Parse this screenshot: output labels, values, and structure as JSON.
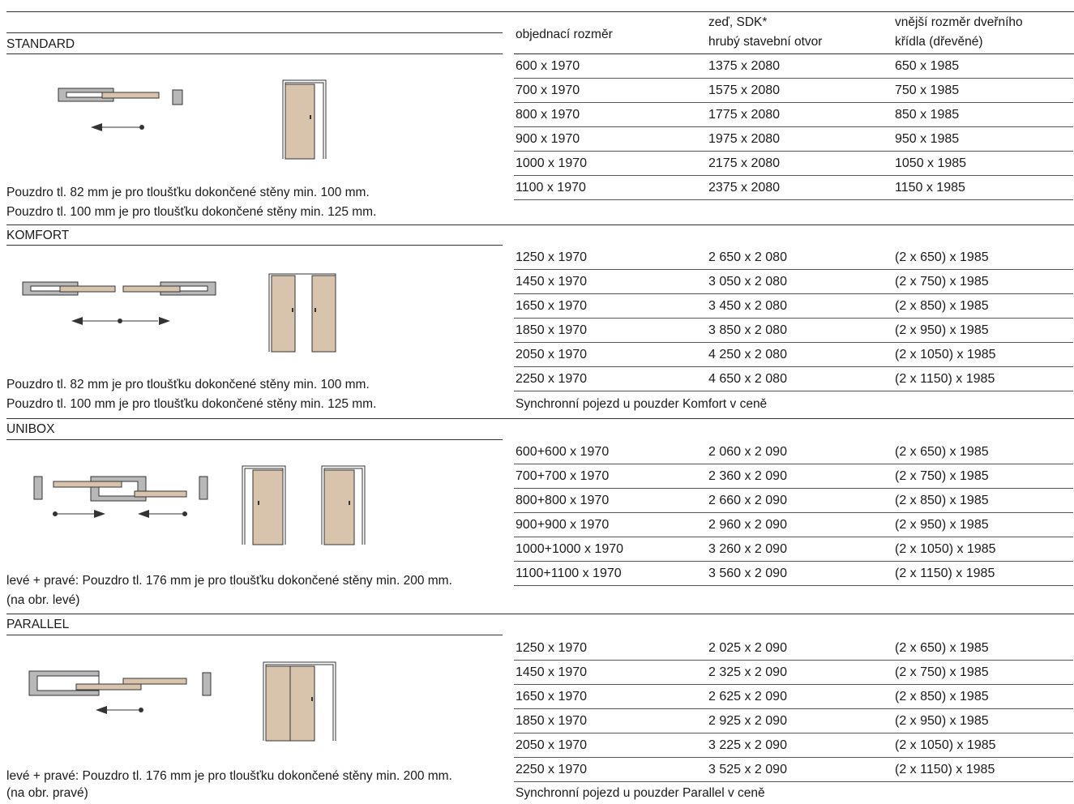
{
  "header": {
    "col1": "objednací rozměr",
    "col2_line1": "zeď, SDK*",
    "col2_line2": "hrubý stavební otvor",
    "col3_line1": "vnější rozměr dveřního",
    "col3_line2": "křídla (dřevěné)"
  },
  "colors": {
    "frame": "#b8b8b8",
    "door": "#d8c4ad",
    "line": "#333333"
  },
  "sections": [
    {
      "title": "STANDARD",
      "notes": [
        "Pouzdro tl. 82 mm je pro tloušťku dokončené stěny min. 100 mm.",
        "Pouzdro tl. 100 mm je pro tloušťku dokončené stěny min. 125 mm."
      ],
      "rows": [
        [
          "600 x 1970",
          "1375 x 2080",
          "650 x 1985"
        ],
        [
          "700 x 1970",
          "1575 x 2080",
          "750 x 1985"
        ],
        [
          "800 x 1970",
          "1775 x 2080",
          "850 x 1985"
        ],
        [
          "900 x 1970",
          "1975 x 2080",
          "950 x 1985"
        ],
        [
          "1000 x 1970",
          "2175 x 2080",
          "1050 x 1985"
        ],
        [
          "1100 x 1970",
          "2375 x 2080",
          "1150 x 1985"
        ]
      ],
      "footnote": ""
    },
    {
      "title": "KOMFORT",
      "notes": [
        "Pouzdro tl. 82 mm je pro tloušťku dokončené stěny min. 100 mm.",
        "Pouzdro tl. 100 mm je pro tloušťku dokončené stěny min. 125 mm."
      ],
      "rows": [
        [
          "1250 x 1970",
          "2 650 x 2 080",
          "(2 x 650) x 1985"
        ],
        [
          "1450 x 1970",
          "3 050 x 2 080",
          "(2 x 750) x 1985"
        ],
        [
          "1650 x 1970",
          "3 450 x 2 080",
          "(2 x 850) x 1985"
        ],
        [
          "1850 x 1970",
          "3 850 x 2 080",
          "(2 x 950) x 1985"
        ],
        [
          "2050 x 1970",
          "4 250 x 2 080",
          "(2 x 1050) x 1985"
        ],
        [
          "2250 x 1970",
          "4 650 x 2 080",
          "(2 x 1150) x 1985"
        ]
      ],
      "footnote": "Synchronní pojezd u pouzder Komfort v ceně"
    },
    {
      "title": "UNIBOX",
      "notes": [
        "levé + pravé: Pouzdro tl. 176 mm je pro tloušťku dokončené stěny min. 200 mm.",
        "(na obr. levé)"
      ],
      "rows": [
        [
          "600+600 x 1970",
          "2 060 x 2 090",
          "(2 x 650) x 1985"
        ],
        [
          "700+700 x 1970",
          "2 360 x 2 090",
          "(2 x 750) x 1985"
        ],
        [
          "800+800 x 1970",
          "2 660 x 2 090",
          "(2 x 850) x 1985"
        ],
        [
          "900+900 x 1970",
          "2 960 x 2 090",
          "(2 x 950) x 1985"
        ],
        [
          "1000+1000 x 1970",
          "3 260 x 2 090",
          "(2 x 1050) x 1985"
        ],
        [
          "1100+1100 x 1970",
          "3 560 x 2 090",
          "(2 x 1150) x 1985"
        ]
      ],
      "footnote": ""
    },
    {
      "title": "PARALLEL",
      "notes": [
        "levé + pravé: Pouzdro tl. 176 mm je pro tloušťku dokončené stěny min. 200 mm.",
        "(na obr. pravé)"
      ],
      "rows": [
        [
          "1250 x 1970",
          "2 025 x 2 090",
          "(2 x 650) x 1985"
        ],
        [
          "1450 x 1970",
          "2 325 x 2 090",
          "(2 x 750) x 1985"
        ],
        [
          "1650 x 1970",
          "2 625 x 2 090",
          "(2 x 850) x 1985"
        ],
        [
          "1850 x 1970",
          "2 925 x 2 090",
          "(2 x 950) x 1985"
        ],
        [
          "2050 x 1970",
          "3 225 x 2 090",
          "(2 x 1050) x 1985"
        ],
        [
          "2250 x 1970",
          "3 525 x 2 090",
          "(2 x 1150) x 1985"
        ]
      ],
      "footnote": "Synchronní pojezd u pouzder Parallel v ceně"
    }
  ]
}
